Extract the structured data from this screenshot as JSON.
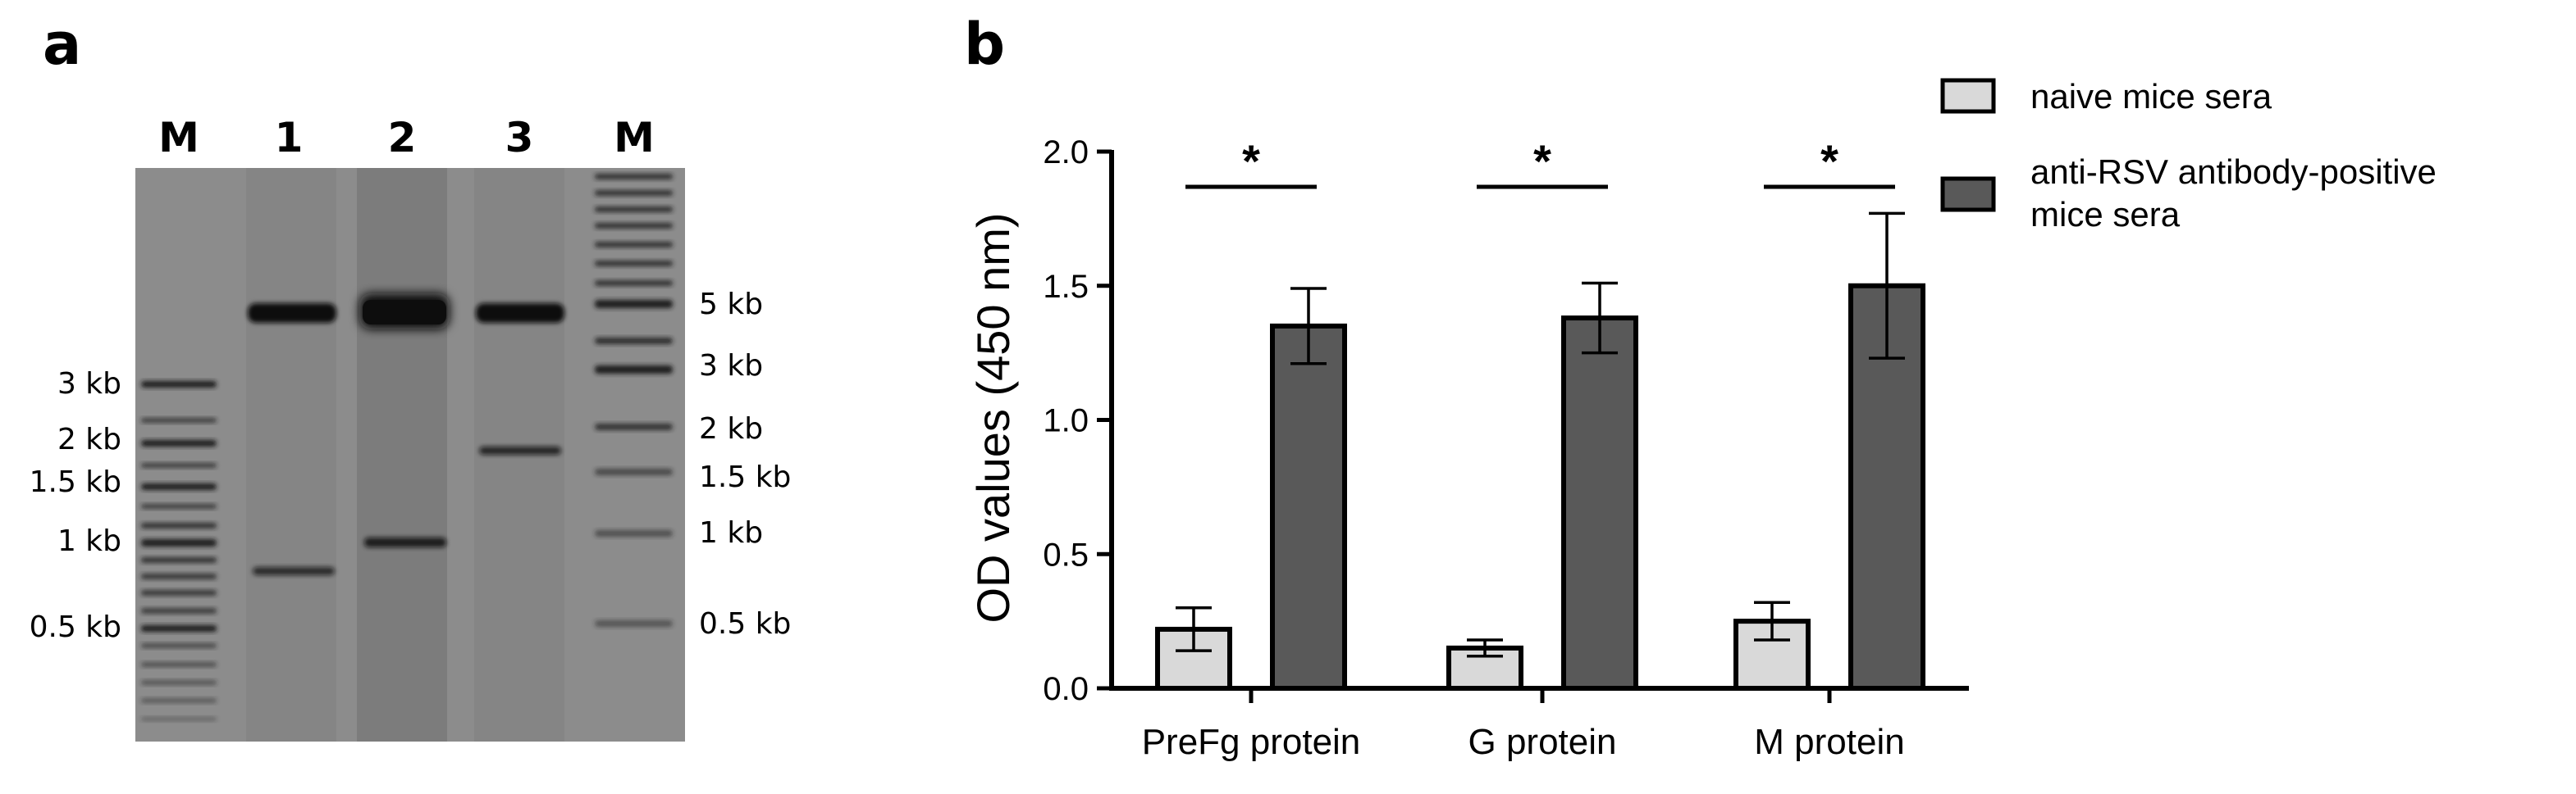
{
  "panels": {
    "a_letter": "a",
    "b_letter": "b"
  },
  "gel": {
    "lane_labels": [
      "M",
      "1",
      "2",
      "3",
      "M"
    ],
    "left_markers": [
      "3 kb",
      "2 kb",
      "1.5 kb",
      "1 kb",
      "0.5 kb"
    ],
    "right_markers": [
      "5 kb",
      "3 kb",
      "2 kb",
      "1.5 kb",
      "1 kb",
      "0.5 kb"
    ],
    "background_color": "#8c8c8c",
    "band_color": "#111111"
  },
  "chart_data": {
    "type": "bar",
    "categories": [
      "PreFg protein",
      "G protein",
      "M protein"
    ],
    "series": [
      {
        "name": "naive mice sera",
        "values": [
          0.22,
          0.15,
          0.25
        ],
        "errors": [
          0.08,
          0.03,
          0.07
        ],
        "color": "#d9d9d9"
      },
      {
        "name": "anti-RSV antibody-positive\nmice sera",
        "values": [
          1.35,
          1.38,
          1.5
        ],
        "errors": [
          0.14,
          0.13,
          0.27
        ],
        "color": "#595959"
      }
    ],
    "ylabel": "OD values (450 nm)",
    "ylim": [
      0,
      2.0
    ],
    "yticks": [
      "0.0",
      "0.5",
      "1.0",
      "1.5",
      "2.0"
    ],
    "significance": [
      "*",
      "*",
      "*"
    ],
    "legend_placement": "top-right",
    "grid": false
  }
}
